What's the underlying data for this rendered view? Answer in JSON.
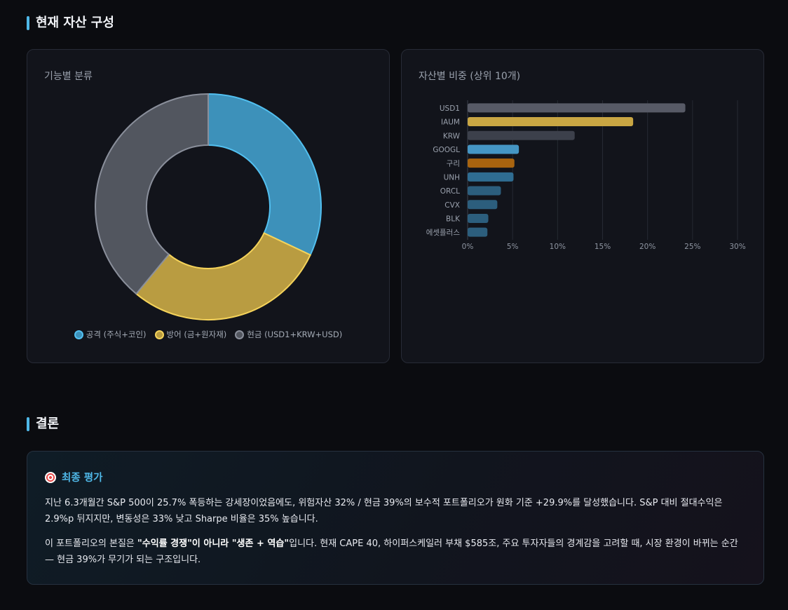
{
  "section1": {
    "title": "현재 자산 구성"
  },
  "donut": {
    "title": "기능별 분류",
    "chart_data": {
      "type": "pie",
      "donut": true,
      "slices": [
        {
          "label": "공격 (주식+코인)",
          "value": 32,
          "color": "#3d91ba",
          "stroke": "#52c0f0"
        },
        {
          "label": "방어 (금+원자재)",
          "value": 29,
          "color": "#b99c41",
          "stroke": "#f5d35a"
        },
        {
          "label": "현금 (USD1+KRW+USD)",
          "value": 39,
          "color": "#52565f",
          "stroke": "#8a8f9b"
        }
      ]
    }
  },
  "bars": {
    "title": "자산별 비중 (상위 10개)",
    "chart_data": {
      "type": "bar",
      "orientation": "horizontal",
      "categories": [
        "USD1",
        "IAUM",
        "KRW",
        "GOOGL",
        "구리",
        "UNH",
        "ORCL",
        "CVX",
        "BLK",
        "에셋플러스"
      ],
      "values": [
        24.2,
        18.4,
        11.9,
        5.7,
        5.2,
        5.1,
        3.7,
        3.3,
        2.3,
        2.2
      ],
      "colors": [
        "#575a66",
        "#c9a643",
        "#3c404b",
        "#4596c4",
        "#a8640f",
        "#2f6d92",
        "#2c5e7d",
        "#2c5e7d",
        "#2c5e7d",
        "#2c5e7d"
      ],
      "xlim": [
        0,
        30
      ],
      "xticks": [
        "0%",
        "5%",
        "10%",
        "15%",
        "20%",
        "25%",
        "30%"
      ],
      "grid": true
    }
  },
  "section2": {
    "title": "결론"
  },
  "conclusion": {
    "heading": "최종 평가",
    "p1": "지난 6.3개월간 S&P 500이 25.7% 폭등하는 강세장이었음에도, 위험자산 32% / 현금 39%의 보수적 포트폴리오가 원화 기준 +29.9%를 달성했습니다. S&P 대비 절대수익은 2.9%p 뒤지지만, 변동성은 33% 낮고 Sharpe 비율은 35% 높습니다.",
    "p2_pre": "이 포트폴리오의 본질은 ",
    "p2_bold": "\"수익률 경쟁\"이 아니라 \"생존 + 역습\"",
    "p2_post": "입니다. 현재 CAPE 40, 하이퍼스케일러 부채 $585조, 주요 투자자들의 경계감을 고려할 때, 시장 환경이 바뀌는 순간 — 현금 39%가 무기가 되는 구조입니다."
  }
}
